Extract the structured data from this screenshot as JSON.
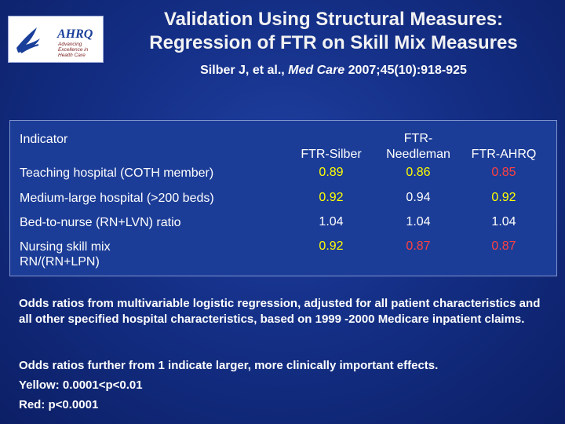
{
  "logo": {
    "text": "AHRQ",
    "tagline_1": "Advancing",
    "tagline_2": "Excellence in",
    "tagline_3": "Health Care"
  },
  "title_line1": "Validation Using Structural Measures:",
  "title_line2": "Regression of FTR on Skill Mix Measures",
  "citation": {
    "authors": "Silber J, et al., ",
    "journal": "Med Care",
    "details": " 2007;45(10):918-925"
  },
  "table": {
    "indicator_header": "Indicator",
    "col1_header": "FTR-Silber",
    "col2_header_line1": "FTR-",
    "col2_header_line2": "Needleman",
    "col3_header": "FTR-AHRQ",
    "rows": [
      {
        "label": "Teaching hospital (COTH member)",
        "v1": "0.89",
        "v2": "0.86",
        "v3": "0.85"
      },
      {
        "label": "Medium-large hospital (>200 beds)",
        "v1": "0.92",
        "v2": "0.94",
        "v3": "0.92"
      },
      {
        "label": "Bed-to-nurse (RN+LVN) ratio",
        "v1": "1.04",
        "v2": "1.04",
        "v3": "1.04"
      },
      {
        "label_line1": "Nursing skill mix",
        "label_line2": "RN/(RN+LPN)",
        "v1": "0.92",
        "v2": "0.87",
        "v3": "0.87"
      }
    ]
  },
  "notes": {
    "p1": "Odds ratios from multivariable logistic regression, adjusted for all patient characteristics and all other specified hospital characteristics, based on 1999 -2000 Medicare inpatient claims.",
    "p2": "Odds ratios further from 1 indicate larger, more clinically important effects.",
    "yellow_legend": "Yellow: 0.0001<p<0.01",
    "red_legend": "Red: p<0.0001"
  },
  "colors": {
    "yellow": "#ffff00",
    "red": "#ff4040",
    "background": "#142f86"
  }
}
